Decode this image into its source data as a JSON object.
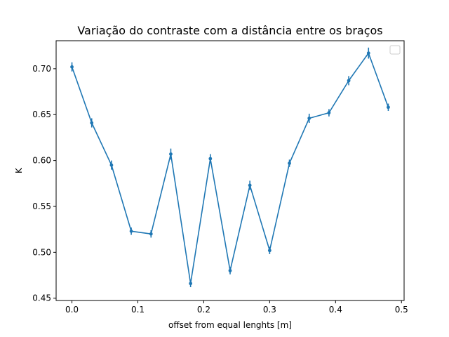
{
  "chart_data": {
    "type": "line",
    "title": "Variação do contraste com a distância entre os braços",
    "xlabel": "offset from equal lenghts [m]",
    "ylabel": "K",
    "xlim": [
      -0.024,
      0.504
    ],
    "ylim": [
      0.4475,
      0.7305
    ],
    "grid": false,
    "legend": "top-right",
    "legend_entries": [],
    "x_ticks": [
      0.0,
      0.1,
      0.2,
      0.3,
      0.4,
      0.5
    ],
    "x_tick_labels": [
      "0.0",
      "0.1",
      "0.2",
      "0.3",
      "0.4",
      "0.5"
    ],
    "y_ticks": [
      0.45,
      0.5,
      0.55,
      0.6,
      0.65,
      0.7
    ],
    "y_tick_labels": [
      "0.45",
      "0.50",
      "0.55",
      "0.60",
      "0.65",
      "0.70"
    ],
    "series": [
      {
        "color": "#1f77b4",
        "x": [
          0.0,
          0.03,
          0.06,
          0.09,
          0.12,
          0.15,
          0.18,
          0.21,
          0.24,
          0.27,
          0.3,
          0.33,
          0.36,
          0.39,
          0.42,
          0.45,
          0.48
        ],
        "y": [
          0.702,
          0.641,
          0.595,
          0.523,
          0.52,
          0.607,
          0.466,
          0.602,
          0.48,
          0.573,
          0.502,
          0.597,
          0.646,
          0.652,
          0.687,
          0.717,
          0.658
        ],
        "yerr": [
          0.005,
          0.005,
          0.005,
          0.004,
          0.004,
          0.006,
          0.004,
          0.005,
          0.004,
          0.005,
          0.004,
          0.004,
          0.005,
          0.004,
          0.005,
          0.006,
          0.004
        ]
      }
    ]
  }
}
